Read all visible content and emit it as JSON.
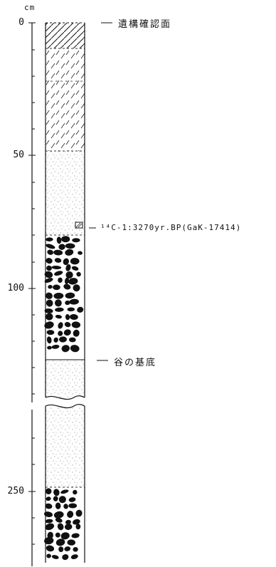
{
  "unit_label": "cm",
  "depth_labels": [
    "0",
    "50",
    "100",
    "250"
  ],
  "annotations": {
    "surface": "遺構確認面",
    "date": "¹⁴C-1:3270yr.BP(GaK-17414)",
    "valley_base": "谷の基底"
  },
  "colors": {
    "ink": "#111111",
    "background": "#ffffff"
  },
  "legend_patterns": [
    "diagonal-hatch",
    "dashed-hatch",
    "stipple",
    "gravel"
  ]
}
